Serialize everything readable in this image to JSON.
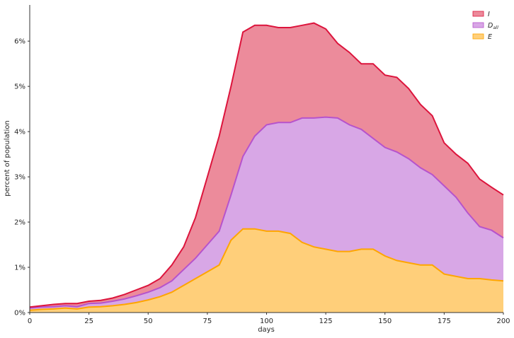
{
  "chart_data": {
    "type": "area",
    "stacked": true,
    "title": "",
    "xlabel": "days",
    "ylabel": "percent of population",
    "xlim": [
      0,
      200
    ],
    "ylim": [
      0,
      6.8
    ],
    "x_ticks": [
      0,
      25,
      50,
      75,
      100,
      125,
      150,
      175,
      200
    ],
    "y_ticks": [
      0,
      1,
      2,
      3,
      4,
      5,
      6
    ],
    "y_tick_format": "percent",
    "grid": false,
    "legend_position": "top-right",
    "x": [
      0,
      5,
      10,
      15,
      20,
      25,
      30,
      35,
      40,
      45,
      50,
      55,
      60,
      65,
      70,
      75,
      80,
      85,
      90,
      95,
      100,
      105,
      110,
      115,
      120,
      125,
      130,
      135,
      140,
      145,
      150,
      155,
      160,
      165,
      170,
      175,
      180,
      185,
      190,
      195,
      200
    ],
    "series": [
      {
        "name": "E",
        "color": "#ffa500",
        "fill": "#ffcf7a",
        "values": [
          0.05,
          0.07,
          0.08,
          0.1,
          0.08,
          0.12,
          0.13,
          0.15,
          0.18,
          0.22,
          0.28,
          0.35,
          0.45,
          0.6,
          0.75,
          0.9,
          1.05,
          1.6,
          1.85,
          1.85,
          1.8,
          1.8,
          1.75,
          1.55,
          1.45,
          1.4,
          1.35,
          1.35,
          1.4,
          1.4,
          1.25,
          1.15,
          1.1,
          1.05,
          1.05,
          0.85,
          0.8,
          0.75,
          0.75,
          0.72,
          0.7
        ]
      },
      {
        "name": "D_all",
        "color": "#b653cc",
        "fill": "#d8a7e6",
        "values": [
          0.05,
          0.05,
          0.05,
          0.05,
          0.05,
          0.08,
          0.08,
          0.1,
          0.12,
          0.15,
          0.17,
          0.2,
          0.25,
          0.35,
          0.45,
          0.6,
          0.75,
          1.0,
          1.6,
          2.05,
          2.35,
          2.4,
          2.45,
          2.75,
          2.85,
          2.92,
          2.95,
          2.8,
          2.65,
          2.45,
          2.4,
          2.4,
          2.3,
          2.15,
          2.0,
          1.95,
          1.75,
          1.45,
          1.15,
          1.1,
          0.95
        ]
      },
      {
        "name": "I",
        "color": "#dc143c",
        "fill": "#ec8b9b",
        "values": [
          0.02,
          0.03,
          0.05,
          0.05,
          0.07,
          0.05,
          0.06,
          0.07,
          0.1,
          0.13,
          0.15,
          0.2,
          0.35,
          0.5,
          0.9,
          1.5,
          2.1,
          2.4,
          2.75,
          2.45,
          2.2,
          2.1,
          2.1,
          2.05,
          2.1,
          1.95,
          1.65,
          1.6,
          1.45,
          1.65,
          1.6,
          1.65,
          1.55,
          1.4,
          1.3,
          0.95,
          0.95,
          1.1,
          1.05,
          0.95,
          0.95
        ]
      }
    ],
    "legend": [
      {
        "series": "I",
        "label": "I",
        "sub": ""
      },
      {
        "series": "D_all",
        "label": "D",
        "sub": "all"
      },
      {
        "series": "E",
        "label": "E",
        "sub": ""
      }
    ]
  }
}
